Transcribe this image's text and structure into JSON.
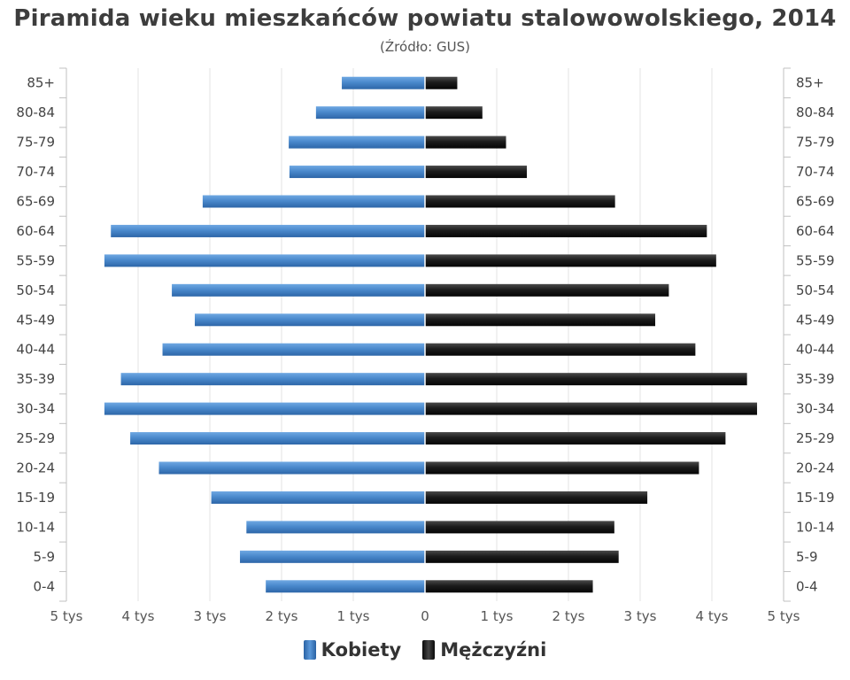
{
  "title": "Piramida wieku mieszkańców powiatu stalowowolskiego, 2014",
  "subtitle": "(Źródło: GUS)",
  "chart_data": {
    "type": "bar",
    "orientation": "horizontal-population-pyramid",
    "categories": [
      "85+",
      "80-84",
      "75-79",
      "70-74",
      "65-69",
      "60-64",
      "55-59",
      "50-54",
      "45-49",
      "40-44",
      "35-39",
      "30-34",
      "25-29",
      "20-24",
      "15-19",
      "10-14",
      "5-9",
      "0-4"
    ],
    "series": [
      {
        "name": "Kobiety",
        "side": "left",
        "color": "#3f7fc3",
        "values": [
          1160,
          1520,
          1900,
          1890,
          3100,
          4380,
          4470,
          3530,
          3210,
          3660,
          4240,
          4470,
          4110,
          3710,
          2980,
          2490,
          2580,
          2220
        ]
      },
      {
        "name": "Mężczyźni",
        "side": "right",
        "color": "#1a1a1a",
        "values": [
          450,
          800,
          1130,
          1420,
          2650,
          3930,
          4060,
          3400,
          3210,
          3770,
          4490,
          4630,
          4190,
          3820,
          3100,
          2640,
          2700,
          2340
        ]
      }
    ],
    "xlim": [
      -5000,
      5000
    ],
    "x_ticks": [
      -5000,
      -4000,
      -3000,
      -2000,
      -1000,
      0,
      1000,
      2000,
      3000,
      4000,
      5000
    ],
    "x_tick_labels": [
      "5 tys",
      "4 tys",
      "3 tys",
      "2 tys",
      "1 tys",
      "0",
      "1 tys",
      "2 tys",
      "3 tys",
      "4 tys",
      "5 tys"
    ],
    "grid": true,
    "legend_position": "bottom-center"
  },
  "legend": {
    "women_label": "Kobiety",
    "men_label": "Mężczyźni"
  }
}
